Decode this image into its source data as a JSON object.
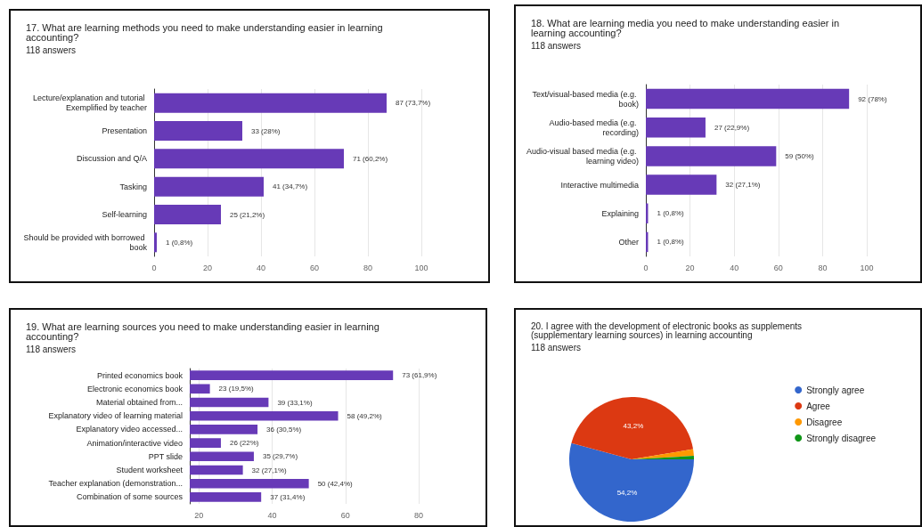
{
  "chart_data": [
    {
      "type": "bar",
      "orientation": "horizontal",
      "title": "17. What are learning methods you need to make understanding easier in learning accounting?",
      "subtitle": "118 answers",
      "categories": [
        "Lecture/explanation and tutorial Exemplified by teacher",
        "Presentation",
        "Discussion and Q/A",
        "Tasking",
        "Self-learning",
        "Should be provided with borrowed book"
      ],
      "values": [
        87,
        33,
        71,
        41,
        25,
        1
      ],
      "value_labels": [
        "87 (73,7%)",
        "33 (28%)",
        "71 (60,2%)",
        "41 (34,7%)",
        "25 (21,2%)",
        "1 (0,8%)"
      ],
      "color": "#673ab7",
      "xlim": [
        0,
        100
      ],
      "xticks": [
        0,
        20,
        40,
        60,
        80,
        100
      ],
      "grid": "x",
      "legend": false
    },
    {
      "type": "bar",
      "orientation": "horizontal",
      "title": "18. What are learning media you need to make understanding easier in learning accounting?",
      "subtitle": "118 answers",
      "categories": [
        "Text/visual-based media (e.g. book)",
        "Audio-based media (e.g. recording)",
        "Audio-visual based media (e.g. learning video)",
        "Interactive multimedia",
        "Explaining",
        "Other"
      ],
      "values": [
        92,
        27,
        59,
        32,
        1,
        1
      ],
      "value_labels": [
        "92 (78%)",
        "27 (22,9%)",
        "59 (50%)",
        "32 (27,1%)",
        "1 (0,8%)",
        "1 (0,8%)"
      ],
      "color": "#673ab7",
      "xlim": [
        0,
        100
      ],
      "xticks": [
        0,
        20,
        40,
        60,
        80,
        100
      ],
      "grid": "x",
      "legend": false
    },
    {
      "type": "bar",
      "orientation": "horizontal",
      "title": "19. What are learning sources you need to make understanding easier in learning accounting?",
      "subtitle": "118 answers",
      "categories": [
        "Printed economics book",
        "Electronic economics book",
        "Material obtained from...",
        "Explanatory video of learning material",
        "Explanatory video accessed...",
        "Animation/interactive video",
        "PPT slide",
        "Student worksheet",
        "Teacher explanation (demonstration...",
        "Combination of some sources"
      ],
      "values": [
        73,
        23,
        39,
        58,
        36,
        26,
        35,
        32,
        50,
        37
      ],
      "value_labels": [
        "73 (61,9%)",
        "23 (19,5%)",
        "39 (33,1%)",
        "58 (49,2%)",
        "36 (30,5%)",
        "26 (22%)",
        "35 (29,7%)",
        "32 (27,1%)",
        "50 (42,4%)",
        "37 (31,4%)"
      ],
      "color": "#673ab7",
      "xlim": [
        17.5,
        80
      ],
      "xticks": [
        20,
        40,
        60,
        80
      ],
      "grid": "x",
      "legend": false
    },
    {
      "type": "pie",
      "title": "20. I agree with the development of electronic books as supplements (supplementary learning sources) in learning accounting",
      "subtitle": "118 answers",
      "categories": [
        "Strongly agree",
        "Agree",
        "Disagree",
        "Strongly disagree"
      ],
      "values": [
        54.2,
        43.2,
        1.7,
        0.9
      ],
      "value_labels": [
        "54,2%",
        "43,2%",
        null,
        null
      ],
      "colors": [
        "#3366cc",
        "#dc3912",
        "#ff9900",
        "#109618"
      ],
      "legend": "top right"
    }
  ]
}
